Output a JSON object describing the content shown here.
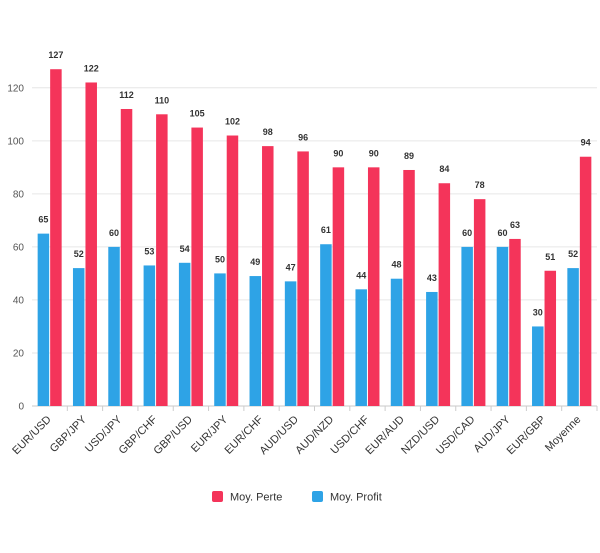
{
  "chart_data": {
    "type": "bar",
    "title": "",
    "xlabel": "",
    "ylabel": "",
    "ylim": [
      0,
      135
    ],
    "yticks": [
      0,
      20,
      40,
      60,
      80,
      100,
      120
    ],
    "grid": true,
    "legend_position": "bottom",
    "categories": [
      "EUR/USD",
      "GBP/JPY",
      "USD/JPY",
      "GBP/CHF",
      "GBP/USD",
      "EUR/JPY",
      "EUR/CHF",
      "AUD/USD",
      "AUD/NZD",
      "USD/CHF",
      "EUR/AUD",
      "NZD/USD",
      "USD/CAD",
      "AUD/JPY",
      "EUR/GBP",
      "Moyenne"
    ],
    "series": [
      {
        "name": "Moy. Profit",
        "color": "#2ea3e6",
        "values": [
          65,
          52,
          60,
          53,
          54,
          50,
          49,
          47,
          61,
          44,
          48,
          43,
          60,
          60,
          30,
          52
        ]
      },
      {
        "name": "Moy. Perte",
        "color": "#f4345a",
        "values": [
          127,
          122,
          112,
          110,
          105,
          102,
          98,
          96,
          90,
          90,
          89,
          84,
          78,
          63,
          51,
          94
        ]
      }
    ],
    "legend": [
      {
        "name": "Moy. Perte",
        "color": "#f4345a"
      },
      {
        "name": "Moy. Profit",
        "color": "#2ea3e6"
      }
    ]
  }
}
